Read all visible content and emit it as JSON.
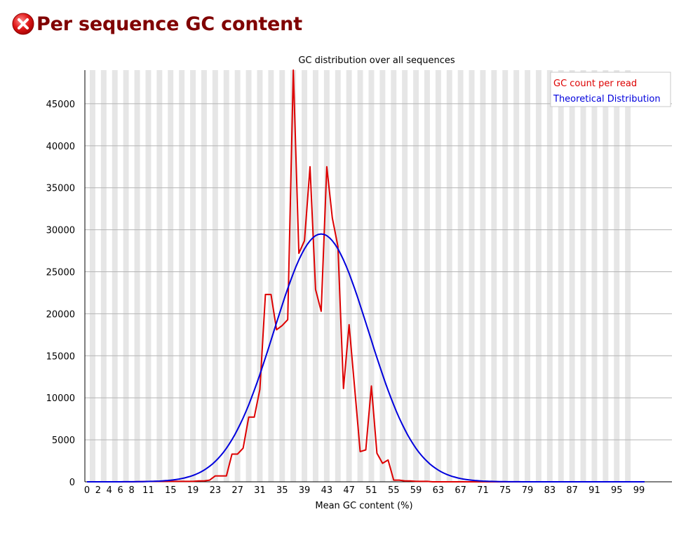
{
  "header": {
    "title": "Per sequence GC content",
    "status_icon": "error-icon",
    "status_color": "#cc0000"
  },
  "chart_data": {
    "type": "line",
    "title": "GC distribution over all sequences",
    "xlabel": "Mean GC content (%)",
    "ylabel": "",
    "xlim": [
      0,
      100
    ],
    "ylim": [
      0,
      49000
    ],
    "x_tick_labels": [
      "0",
      "2",
      "4",
      "6",
      "8",
      "11",
      "15",
      "19",
      "23",
      "27",
      "31",
      "35",
      "39",
      "43",
      "47",
      "51",
      "55",
      "59",
      "63",
      "67",
      "71",
      "75",
      "79",
      "83",
      "87",
      "91",
      "95",
      "99"
    ],
    "y_ticks": [
      0,
      5000,
      10000,
      15000,
      20000,
      25000,
      30000,
      35000,
      40000,
      45000
    ],
    "grid": true,
    "legend_position": "top-right",
    "series": [
      {
        "name": "GC count per read",
        "color": "#dd0000",
        "x": [
          0,
          4,
          8,
          12,
          14,
          16,
          18,
          19,
          20,
          21,
          22,
          23,
          24,
          25,
          26,
          27,
          28,
          29,
          30,
          31,
          32,
          33,
          34,
          35,
          36,
          37,
          38,
          39,
          40,
          41,
          42,
          43,
          44,
          45,
          46,
          47,
          48,
          49,
          50,
          51,
          52,
          53,
          54,
          55,
          56,
          57,
          58,
          59,
          60,
          61,
          62,
          63,
          64,
          65,
          66,
          67,
          68,
          69,
          70,
          71,
          72,
          73,
          74,
          75,
          76,
          77,
          78,
          79,
          80,
          82,
          84,
          86,
          88,
          90,
          95,
          100
        ],
        "values": [
          0,
          0,
          0,
          50,
          50,
          50,
          50,
          50,
          100,
          100,
          200,
          700,
          700,
          700,
          3300,
          3300,
          4000,
          7700,
          7700,
          11000,
          22300,
          22300,
          18100,
          18600,
          19300,
          49000,
          27200,
          28700,
          37500,
          22900,
          20300,
          37500,
          31400,
          28000,
          11100,
          18700,
          11200,
          3600,
          3800,
          11400,
          3400,
          2200,
          2600,
          200,
          200,
          100,
          100,
          50,
          50,
          50,
          0,
          0,
          0,
          0,
          0,
          0,
          0,
          0,
          0,
          0,
          0,
          0,
          0,
          0,
          0,
          0,
          0,
          0,
          0,
          0,
          0,
          0,
          0,
          0,
          0,
          0
        ]
      },
      {
        "name": "Theoretical Distribution",
        "color": "#0000dd",
        "mean": 42,
        "sd": 8.5,
        "peak": 29500,
        "x_range": [
          0,
          100
        ]
      }
    ]
  }
}
